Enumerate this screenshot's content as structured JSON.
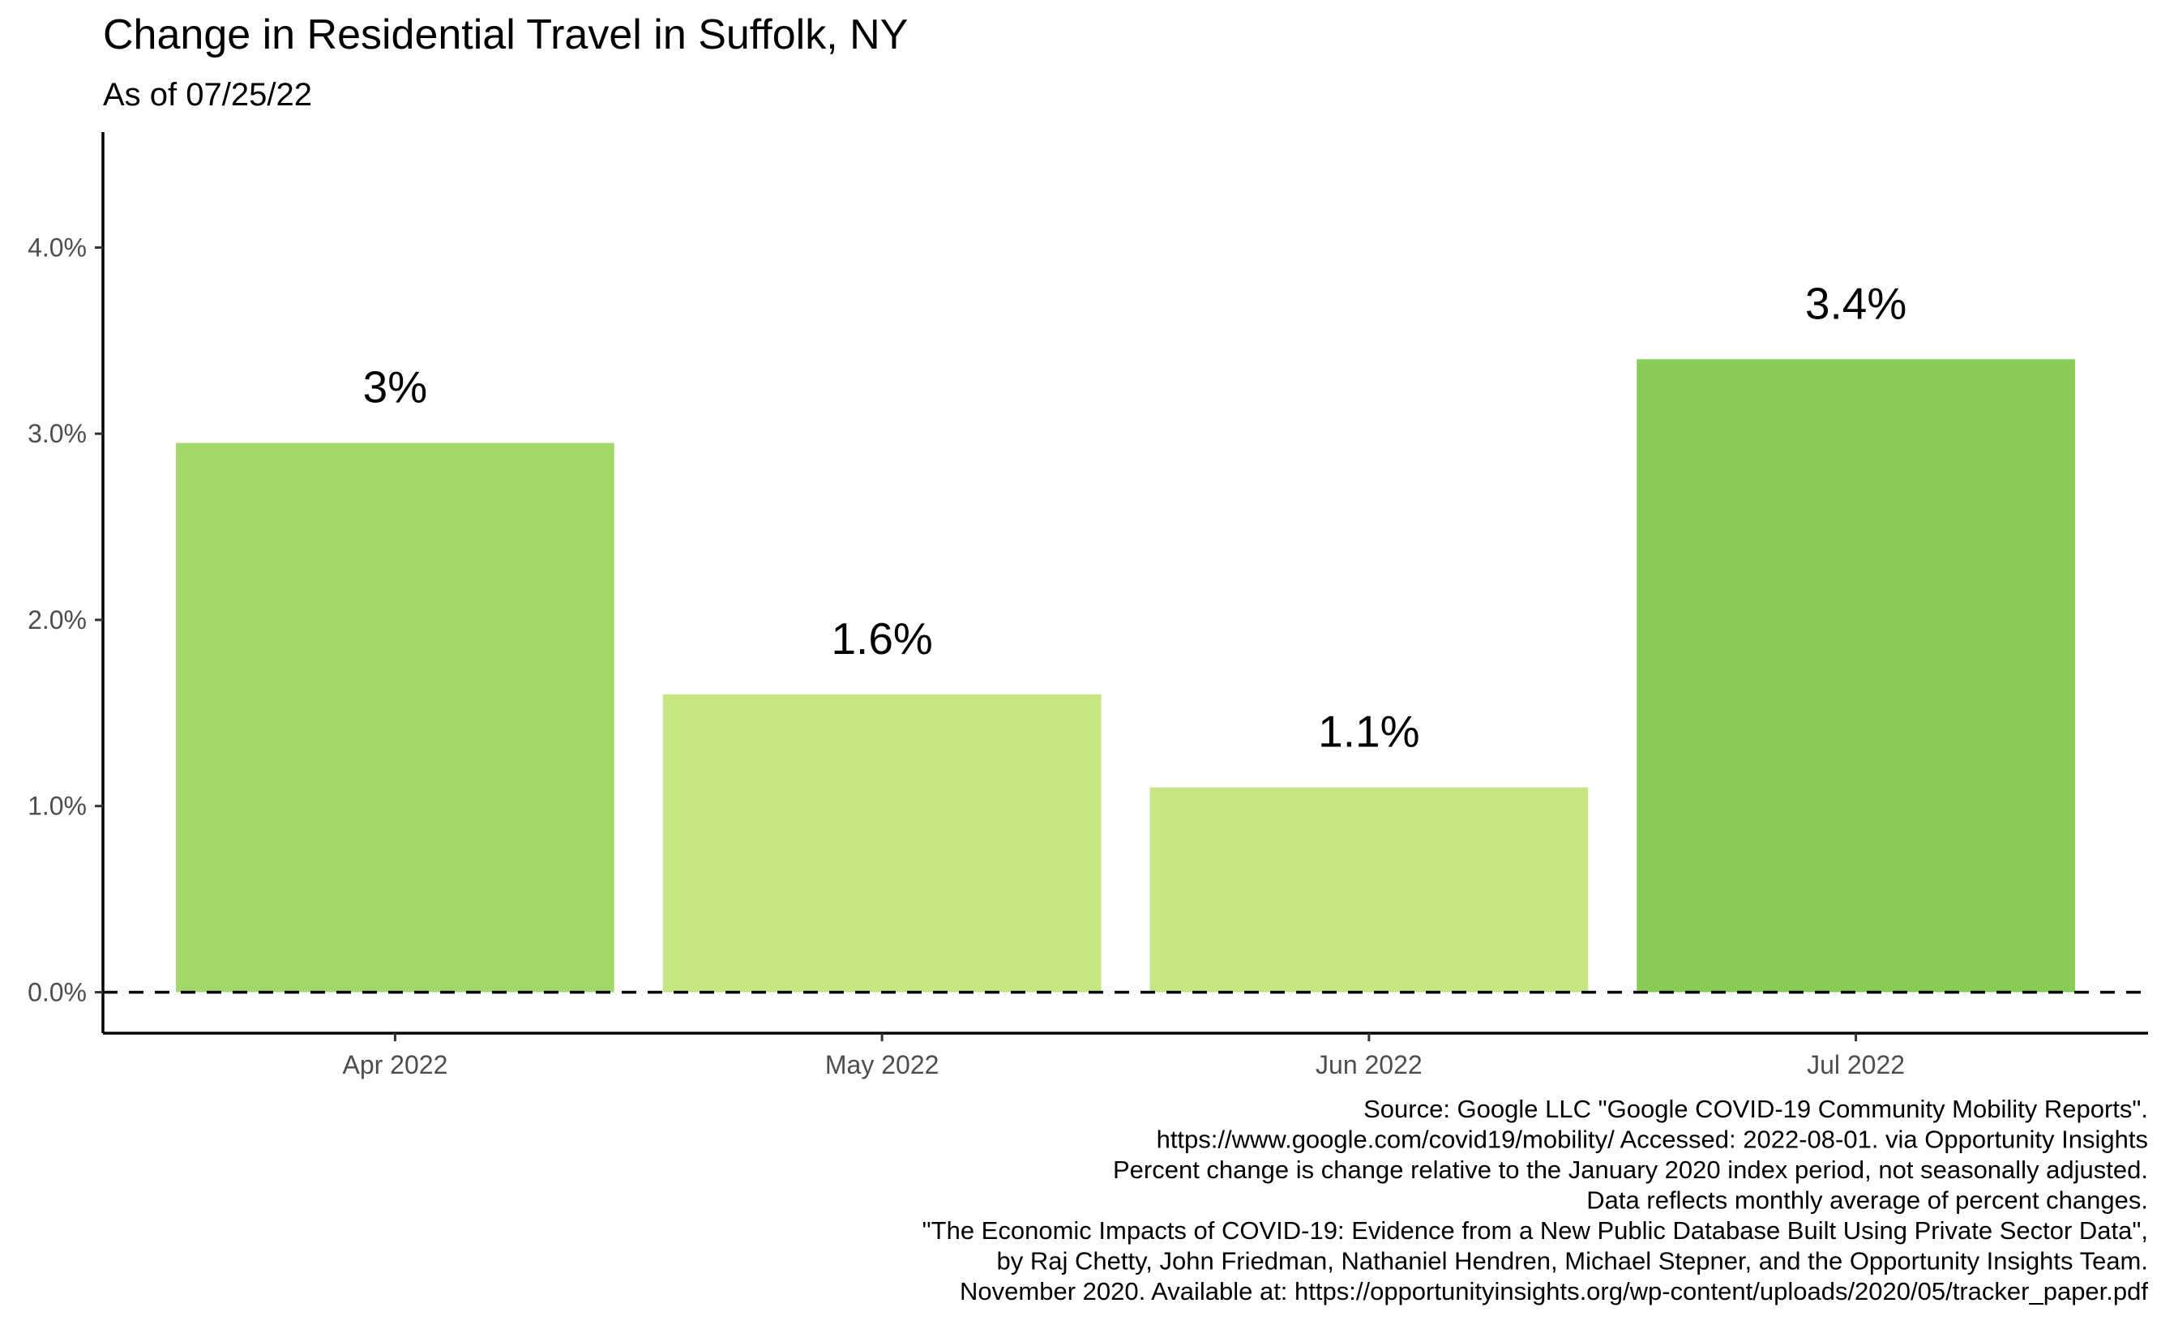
{
  "title": "Change in Residential Travel in Suffolk, NY",
  "subtitle": "As of 07/25/22",
  "chart_data": {
    "type": "bar",
    "categories": [
      "Apr 2022",
      "May 2022",
      "Jun 2022",
      "Jul 2022"
    ],
    "values": [
      2.95,
      1.6,
      1.1,
      3.4
    ],
    "data_labels": [
      "3%",
      "1.6%",
      "1.1%",
      "3.4%"
    ],
    "bar_colors": [
      "#a3d86a",
      "#c6e682",
      "#c6e682",
      "#88cb57"
    ],
    "yticks": [
      0,
      1,
      2,
      3,
      4
    ],
    "ytick_labels": [
      "0.0%",
      "1.0%",
      "2.0%",
      "3.0%",
      "4.0%"
    ],
    "ylim": [
      -0.22,
      4.62
    ],
    "reference_line": {
      "value": 0,
      "style": "dashed"
    },
    "xlabel": "",
    "ylabel": "",
    "grid": false,
    "legend": "none"
  },
  "caption": [
    "Source: Google LLC \"Google COVID-19 Community Mobility Reports\".",
    "https://www.google.com/covid19/mobility/ Accessed: 2022-08-01. via Opportunity Insights",
    "Percent change is change relative to the January 2020 index period, not seasonally adjusted.",
    "Data reflects monthly average of percent changes.",
    "\"The Economic Impacts of COVID-19: Evidence from a New Public Database Built Using Private Sector Data\",",
    "by Raj Chetty, John Friedman, Nathaniel Hendren, Michael Stepner, and the Opportunity Insights Team.",
    "November 2020. Available at: https://opportunityinsights.org/wp-content/uploads/2020/05/tracker_paper.pdf"
  ]
}
